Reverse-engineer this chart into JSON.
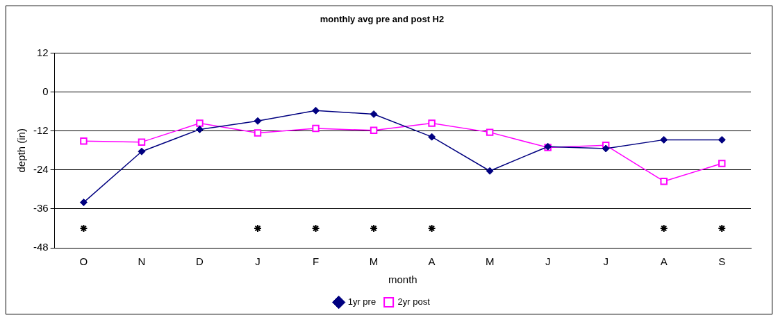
{
  "chart_data": {
    "type": "line",
    "title": "monthly avg pre and post H2",
    "xlabel": "month",
    "ylabel": "depth (in)",
    "categories": [
      "O",
      "N",
      "D",
      "J",
      "F",
      "M",
      "A",
      "M",
      "J",
      "J",
      "A",
      "S"
    ],
    "series": [
      {
        "name": "1yr pre",
        "color": "#000080",
        "marker": "diamond",
        "values": [
          -34,
          -18.3,
          -11.5,
          -8.9,
          -5.7,
          -6.8,
          -13.8,
          -24.3,
          -16.8,
          -17.4,
          -14.7,
          -14.7
        ]
      },
      {
        "name": "2yr post",
        "color": "#ff00ff",
        "marker": "square",
        "values": [
          -15.1,
          -15.4,
          -9.6,
          -12.6,
          -11.2,
          -11.8,
          -9.6,
          -12.4,
          -17.1,
          -16.4,
          -27.5,
          -22
        ]
      },
      {
        "type": "scatter",
        "color": "#000000",
        "marker": "cross",
        "values": [
          -42,
          null,
          null,
          -42,
          -42,
          -42,
          -42,
          null,
          null,
          null,
          -42,
          -42
        ]
      }
    ],
    "ylim": [
      -48,
      12
    ],
    "yticks": [
      -48,
      -36,
      -24,
      -12,
      0,
      12
    ],
    "grid": "y",
    "legend": "bottom"
  }
}
